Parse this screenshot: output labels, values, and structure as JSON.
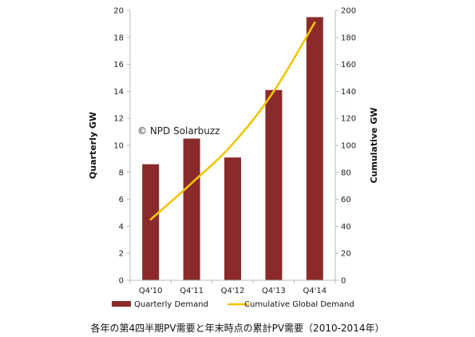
{
  "chart_data": {
    "type": "bar+line",
    "categories": [
      "Q4'10",
      "Q4'11",
      "Q4'12",
      "Q4'13",
      "Q4'14"
    ],
    "series": [
      {
        "name": "Quarterly Demand",
        "type": "bar",
        "axis": "left",
        "color": "#8b2a2a",
        "values": [
          8.6,
          10.5,
          9.1,
          14.1,
          19.5
        ]
      },
      {
        "name": "Cumulative Global Demand",
        "type": "line",
        "axis": "right",
        "color": "#f5c400",
        "values": [
          45,
          72,
          101,
          140,
          191
        ]
      }
    ],
    "ylabel": "Quarterly GW",
    "y2label": "Cumulative GW",
    "ylim": [
      0,
      20
    ],
    "y2lim": [
      0,
      200
    ],
    "yticks": [
      0,
      2,
      4,
      6,
      8,
      10,
      12,
      14,
      16,
      18,
      20
    ],
    "y2ticks": [
      0,
      20,
      40,
      60,
      80,
      100,
      120,
      140,
      160,
      180,
      200
    ],
    "grid": false,
    "legend_position": "bottom",
    "annotation": "© NPD Solarbuzz"
  },
  "caption": "各年の第4四半期PV需要と年末時点の累計PV需要（2010-2014年）"
}
